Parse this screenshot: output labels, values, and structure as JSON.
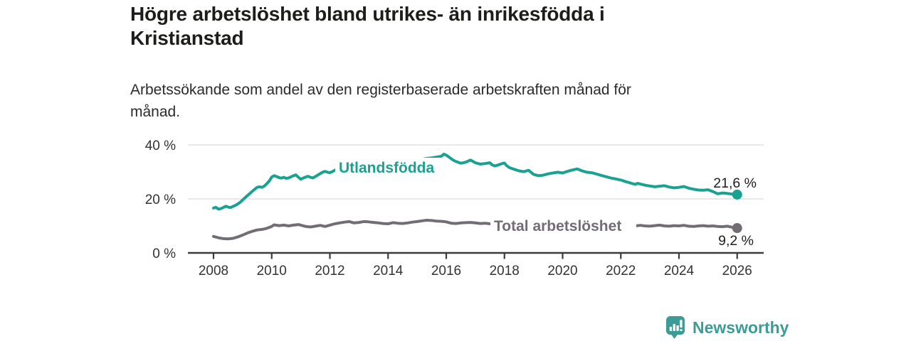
{
  "header": {
    "title": "Högre arbetslöshet bland utrikes- än inrikesfödda i Kristianstad",
    "subtitle": "Arbetssökande som andel av den registerbaserade arbetskraften månad för månad."
  },
  "footer": {
    "brand": "Newsworthy",
    "logo_icon": "bar-chart-speech-bubble-icon"
  },
  "colors": {
    "series_teal": "#19a292",
    "series_gray": "#726d75",
    "brand_teal": "#3d9b97",
    "grid": "#dcdcdc",
    "axis": "#3c3c3c",
    "title_text": "#1d1d1b",
    "body_text": "#2b2b2b",
    "background": "#ffffff"
  },
  "chart_data": {
    "type": "line",
    "title": "Högre arbetslöshet bland utrikes- än inrikesfödda i Kristianstad",
    "subtitle": "Arbetssökande som andel av den registerbaserade arbetskraften månad för månad.",
    "xlabel": "",
    "ylabel": "",
    "grid": "horizontal",
    "legend": "inline-labels",
    "x_axis": {
      "ticks": [
        2008,
        2010,
        2012,
        2014,
        2016,
        2018,
        2020,
        2022,
        2024,
        2026
      ],
      "range": [
        2007.1,
        2026.9
      ]
    },
    "y_axis": {
      "tick_values": [
        0,
        20,
        40
      ],
      "tick_labels": [
        "0 %",
        "20 %",
        "40 %"
      ],
      "range": [
        0,
        40
      ],
      "unit": "%"
    },
    "series": [
      {
        "name": "Utlandsfödda",
        "color": "#19a292",
        "end_label": "21,6 %",
        "end_value": 21.6,
        "points": [
          [
            2008.0,
            16.6
          ],
          [
            2008.08,
            16.9
          ],
          [
            2008.17,
            16.2
          ],
          [
            2008.25,
            16.4
          ],
          [
            2008.33,
            16.8
          ],
          [
            2008.42,
            17.3
          ],
          [
            2008.5,
            17.0
          ],
          [
            2008.58,
            16.8
          ],
          [
            2008.67,
            17.2
          ],
          [
            2008.75,
            17.6
          ],
          [
            2008.83,
            18.1
          ],
          [
            2008.92,
            18.8
          ],
          [
            2009.0,
            19.6
          ],
          [
            2009.08,
            20.4
          ],
          [
            2009.17,
            21.3
          ],
          [
            2009.25,
            22.0
          ],
          [
            2009.33,
            22.8
          ],
          [
            2009.42,
            23.6
          ],
          [
            2009.5,
            24.3
          ],
          [
            2009.58,
            24.5
          ],
          [
            2009.67,
            24.3
          ],
          [
            2009.75,
            24.8
          ],
          [
            2009.83,
            25.6
          ],
          [
            2009.92,
            26.7
          ],
          [
            2010.0,
            28.1
          ],
          [
            2010.08,
            28.6
          ],
          [
            2010.17,
            28.3
          ],
          [
            2010.25,
            27.9
          ],
          [
            2010.33,
            27.7
          ],
          [
            2010.42,
            28.0
          ],
          [
            2010.5,
            27.6
          ],
          [
            2010.58,
            27.8
          ],
          [
            2010.67,
            28.2
          ],
          [
            2010.75,
            28.6
          ],
          [
            2010.83,
            28.9
          ],
          [
            2010.92,
            28.0
          ],
          [
            2011.0,
            27.3
          ],
          [
            2011.08,
            27.7
          ],
          [
            2011.17,
            28.1
          ],
          [
            2011.25,
            28.4
          ],
          [
            2011.33,
            28.0
          ],
          [
            2011.42,
            27.8
          ],
          [
            2011.5,
            28.3
          ],
          [
            2011.58,
            28.8
          ],
          [
            2011.67,
            29.4
          ],
          [
            2011.75,
            29.9
          ],
          [
            2011.83,
            30.2
          ],
          [
            2011.92,
            29.9
          ],
          [
            2012.0,
            29.7
          ],
          [
            2012.08,
            30.1
          ],
          [
            2012.17,
            30.6
          ],
          [
            2012.25,
            31.1
          ],
          [
            2012.33,
            30.7
          ],
          [
            2012.42,
            30.1
          ],
          [
            2012.5,
            29.6
          ],
          [
            2012.67,
            29.9
          ],
          [
            2012.83,
            30.2
          ],
          [
            2013.0,
            30.0
          ],
          [
            2013.17,
            30.4
          ],
          [
            2013.33,
            30.8
          ],
          [
            2013.5,
            31.1
          ],
          [
            2013.67,
            31.4
          ],
          [
            2013.83,
            31.8
          ],
          [
            2014.0,
            32.1
          ],
          [
            2014.17,
            32.5
          ],
          [
            2014.33,
            33.0
          ],
          [
            2014.5,
            33.4
          ],
          [
            2014.67,
            33.8
          ],
          [
            2014.83,
            34.1
          ],
          [
            2015.0,
            34.4
          ],
          [
            2015.17,
            34.7
          ],
          [
            2015.33,
            35.0
          ],
          [
            2015.5,
            35.2
          ],
          [
            2015.67,
            35.5
          ],
          [
            2015.83,
            35.8
          ],
          [
            2015.92,
            36.6
          ],
          [
            2016.0,
            36.2
          ],
          [
            2016.08,
            35.6
          ],
          [
            2016.17,
            34.9
          ],
          [
            2016.25,
            34.3
          ],
          [
            2016.33,
            33.9
          ],
          [
            2016.5,
            33.2
          ],
          [
            2016.67,
            33.6
          ],
          [
            2016.83,
            34.4
          ],
          [
            2016.92,
            33.9
          ],
          [
            2017.0,
            33.4
          ],
          [
            2017.17,
            32.9
          ],
          [
            2017.33,
            33.1
          ],
          [
            2017.5,
            33.4
          ],
          [
            2017.58,
            32.6
          ],
          [
            2017.67,
            32.2
          ],
          [
            2017.83,
            32.7
          ],
          [
            2017.92,
            33.1
          ],
          [
            2018.0,
            33.3
          ],
          [
            2018.08,
            32.3
          ],
          [
            2018.17,
            31.6
          ],
          [
            2018.33,
            31.0
          ],
          [
            2018.5,
            30.4
          ],
          [
            2018.67,
            30.1
          ],
          [
            2018.83,
            30.6
          ],
          [
            2018.92,
            29.8
          ],
          [
            2019.0,
            29.1
          ],
          [
            2019.17,
            28.6
          ],
          [
            2019.33,
            28.8
          ],
          [
            2019.5,
            29.3
          ],
          [
            2019.67,
            29.6
          ],
          [
            2019.83,
            29.9
          ],
          [
            2020.0,
            29.6
          ],
          [
            2020.17,
            30.2
          ],
          [
            2020.33,
            30.7
          ],
          [
            2020.5,
            31.1
          ],
          [
            2020.67,
            30.4
          ],
          [
            2020.83,
            29.9
          ],
          [
            2021.0,
            29.7
          ],
          [
            2021.17,
            29.2
          ],
          [
            2021.33,
            28.7
          ],
          [
            2021.5,
            28.2
          ],
          [
            2021.67,
            27.7
          ],
          [
            2021.83,
            27.4
          ],
          [
            2022.0,
            27.0
          ],
          [
            2022.17,
            26.4
          ],
          [
            2022.33,
            25.9
          ],
          [
            2022.5,
            25.4
          ],
          [
            2022.58,
            25.8
          ],
          [
            2022.67,
            25.5
          ],
          [
            2022.83,
            25.1
          ],
          [
            2023.0,
            24.8
          ],
          [
            2023.17,
            24.5
          ],
          [
            2023.33,
            24.7
          ],
          [
            2023.5,
            24.9
          ],
          [
            2023.67,
            24.4
          ],
          [
            2023.83,
            24.1
          ],
          [
            2024.0,
            24.3
          ],
          [
            2024.17,
            24.6
          ],
          [
            2024.33,
            24.0
          ],
          [
            2024.5,
            23.6
          ],
          [
            2024.67,
            23.3
          ],
          [
            2024.83,
            23.2
          ],
          [
            2025.0,
            23.4
          ],
          [
            2025.17,
            22.7
          ],
          [
            2025.33,
            21.9
          ],
          [
            2025.5,
            22.2
          ],
          [
            2025.67,
            22.0
          ],
          [
            2025.83,
            21.8
          ],
          [
            2026.0,
            21.6
          ]
        ]
      },
      {
        "name": "Total arbetslöshet",
        "color": "#726d75",
        "end_label": "9,2 %",
        "end_value": 9.2,
        "points": [
          [
            2008.0,
            6.1
          ],
          [
            2008.17,
            5.6
          ],
          [
            2008.33,
            5.3
          ],
          [
            2008.5,
            5.2
          ],
          [
            2008.67,
            5.4
          ],
          [
            2008.83,
            5.9
          ],
          [
            2009.0,
            6.6
          ],
          [
            2009.17,
            7.4
          ],
          [
            2009.33,
            8.0
          ],
          [
            2009.5,
            8.5
          ],
          [
            2009.67,
            8.7
          ],
          [
            2009.83,
            9.1
          ],
          [
            2010.0,
            9.8
          ],
          [
            2010.08,
            10.4
          ],
          [
            2010.25,
            10.1
          ],
          [
            2010.42,
            10.3
          ],
          [
            2010.58,
            10.0
          ],
          [
            2010.75,
            10.3
          ],
          [
            2010.92,
            10.5
          ],
          [
            2011.0,
            10.3
          ],
          [
            2011.17,
            9.8
          ],
          [
            2011.33,
            9.6
          ],
          [
            2011.5,
            9.9
          ],
          [
            2011.67,
            10.2
          ],
          [
            2011.83,
            9.8
          ],
          [
            2012.0,
            10.3
          ],
          [
            2012.17,
            10.8
          ],
          [
            2012.33,
            11.1
          ],
          [
            2012.5,
            11.4
          ],
          [
            2012.67,
            11.6
          ],
          [
            2012.83,
            11.1
          ],
          [
            2013.0,
            11.3
          ],
          [
            2013.17,
            11.6
          ],
          [
            2013.33,
            11.5
          ],
          [
            2013.5,
            11.3
          ],
          [
            2013.67,
            11.1
          ],
          [
            2013.83,
            10.9
          ],
          [
            2014.0,
            10.8
          ],
          [
            2014.17,
            11.2
          ],
          [
            2014.33,
            11.0
          ],
          [
            2014.5,
            10.9
          ],
          [
            2014.67,
            11.1
          ],
          [
            2014.83,
            11.4
          ],
          [
            2015.0,
            11.6
          ],
          [
            2015.17,
            11.9
          ],
          [
            2015.33,
            12.1
          ],
          [
            2015.5,
            12.0
          ],
          [
            2015.67,
            11.8
          ],
          [
            2015.83,
            11.7
          ],
          [
            2016.0,
            11.5
          ],
          [
            2016.17,
            11.0
          ],
          [
            2016.33,
            10.9
          ],
          [
            2016.5,
            11.1
          ],
          [
            2016.67,
            11.2
          ],
          [
            2016.83,
            11.3
          ],
          [
            2017.0,
            11.1
          ],
          [
            2017.17,
            10.9
          ],
          [
            2017.33,
            11.0
          ],
          [
            2017.5,
            10.8
          ],
          [
            2017.67,
            10.7
          ],
          [
            2017.83,
            10.9
          ],
          [
            2018.0,
            10.8
          ],
          [
            2018.25,
            10.4
          ],
          [
            2018.5,
            10.2
          ],
          [
            2018.75,
            10.3
          ],
          [
            2019.0,
            10.0
          ],
          [
            2019.25,
            9.9
          ],
          [
            2019.5,
            10.1
          ],
          [
            2019.75,
            10.2
          ],
          [
            2020.0,
            10.4
          ],
          [
            2020.25,
            11.1
          ],
          [
            2020.5,
            11.4
          ],
          [
            2020.75,
            11.2
          ],
          [
            2021.0,
            11.0
          ],
          [
            2021.25,
            10.7
          ],
          [
            2021.5,
            10.4
          ],
          [
            2021.75,
            10.2
          ],
          [
            2022.0,
            10.1
          ],
          [
            2022.25,
            10.0
          ],
          [
            2022.5,
            10.0
          ],
          [
            2022.67,
            10.2
          ],
          [
            2022.83,
            10.0
          ],
          [
            2023.0,
            9.9
          ],
          [
            2023.17,
            10.1
          ],
          [
            2023.33,
            10.3
          ],
          [
            2023.5,
            10.0
          ],
          [
            2023.67,
            9.9
          ],
          [
            2023.83,
            10.1
          ],
          [
            2024.0,
            10.0
          ],
          [
            2024.17,
            10.2
          ],
          [
            2024.33,
            9.9
          ],
          [
            2024.5,
            9.8
          ],
          [
            2024.67,
            10.0
          ],
          [
            2024.83,
            10.1
          ],
          [
            2025.0,
            9.9
          ],
          [
            2025.17,
            10.0
          ],
          [
            2025.33,
            9.8
          ],
          [
            2025.5,
            9.7
          ],
          [
            2025.67,
            9.9
          ],
          [
            2025.83,
            9.5
          ],
          [
            2026.0,
            9.2
          ]
        ]
      }
    ]
  }
}
